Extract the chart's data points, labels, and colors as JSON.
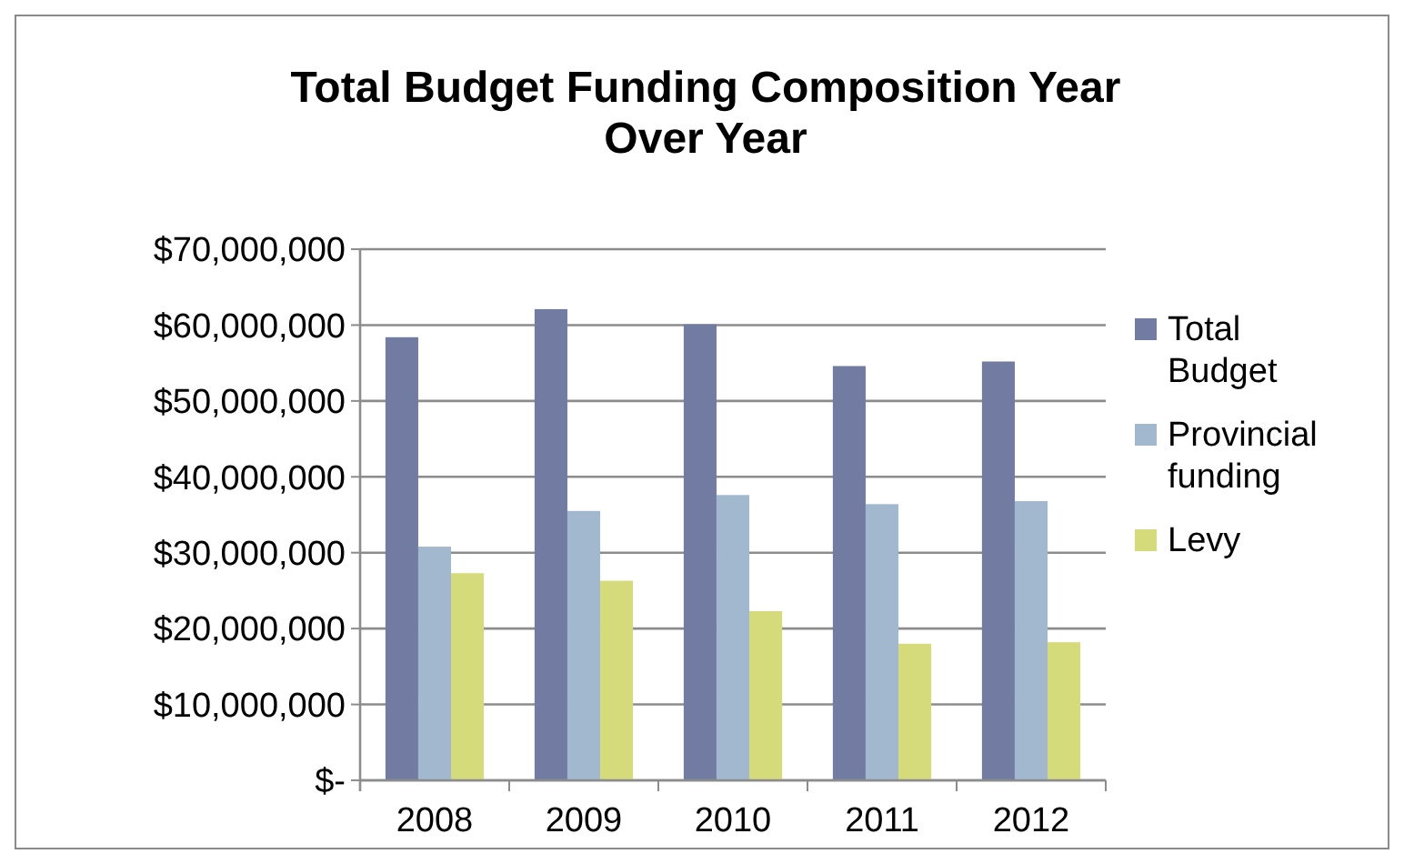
{
  "chart_data": {
    "type": "bar",
    "title": "Total Budget Funding Composition Year Over Year",
    "categories": [
      "2008",
      "2009",
      "2010",
      "2011",
      "2012"
    ],
    "series": [
      {
        "name": "Total Budget",
        "color": "#727ca2",
        "values": [
          58400000,
          62100000,
          60100000,
          54600000,
          55200000
        ]
      },
      {
        "name": "Provincial funding",
        "color": "#a2b8ce",
        "values": [
          30800000,
          35500000,
          37600000,
          36400000,
          36800000
        ]
      },
      {
        "name": "Levy",
        "color": "#d5da7a",
        "values": [
          27300000,
          26300000,
          22300000,
          18000000,
          18200000
        ]
      }
    ],
    "ylim": [
      0,
      70000000
    ],
    "yticks": [
      {
        "value": 0,
        "label": "$-"
      },
      {
        "value": 10000000,
        "label": "$10,000,000"
      },
      {
        "value": 20000000,
        "label": "$20,000,000"
      },
      {
        "value": 30000000,
        "label": "$30,000,000"
      },
      {
        "value": 40000000,
        "label": "$40,000,000"
      },
      {
        "value": 50000000,
        "label": "$50,000,000"
      },
      {
        "value": 60000000,
        "label": "$60,000,000"
      },
      {
        "value": 70000000,
        "label": "$70,000,000"
      }
    ],
    "grid": "y",
    "legend": "right"
  }
}
